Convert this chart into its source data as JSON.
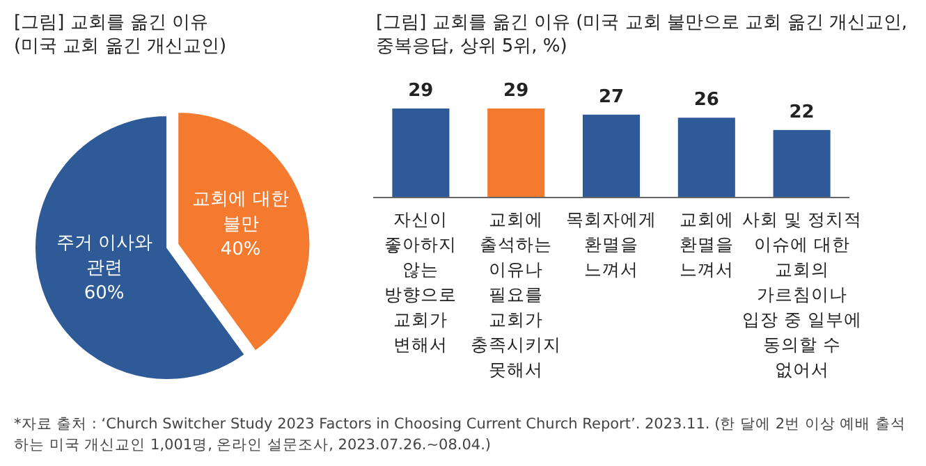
{
  "chart_data": [
    {
      "type": "pie",
      "title": "[그림] 교회를 옮긴 이유\n(미국 교회 옮긴 개신교인)",
      "categories": [
        "교회에 대한\n불만",
        "주거 이사와\n관련"
      ],
      "values": [
        40,
        60
      ],
      "colors": [
        "#f47a30",
        "#2e5a97"
      ],
      "value_labels": [
        "40%",
        "60%"
      ]
    },
    {
      "type": "bar",
      "title": "[그림] 교회를 옮긴 이유 (미국 교회 불만으로 교회 옮긴 개신교인,\n중복응답, 상위 5위, %)",
      "categories": [
        "자신이\n좋아하지\n않는\n방향으로\n교회가\n변해서",
        "교회에\n출석하는\n이유나\n필요를\n교회가\n충족시키지\n못해서",
        "목회자에게\n환멸을\n느껴서",
        "교회에\n환멸을\n느껴서",
        "사회 및 정치적\n이슈에 대한\n교회의\n가르침이나\n입장 중 일부에\n동의할 수\n없어서"
      ],
      "values": [
        29,
        29,
        27,
        26,
        22
      ],
      "colors": [
        "#2e5a97",
        "#f47a30",
        "#2e5a97",
        "#2e5a97",
        "#2e5a97"
      ],
      "data_labels": true,
      "annotations": [
        "*자료 출처 : ‘Church Switcher Study 2023 Factors in Choosing Current Church Report’. 2023.11. (한 달에 2번 이상 예배 출석하는 미국 개신교인 1,001명, 온라인 설문조사, 2023.07.26.~08.04.)"
      ]
    }
  ]
}
